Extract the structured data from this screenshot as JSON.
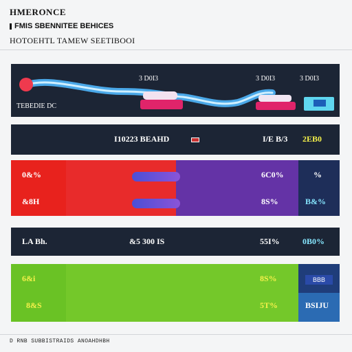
{
  "header": {
    "brand": "HMERONCE",
    "subtitle": "FMIS SBENNITEE BEHICES",
    "link": "HOTOEHTL TAMEW SEETIBOOI"
  },
  "track": {
    "label": "TEBEDIE DC",
    "markers": [
      "3 D0I3",
      "3 D0I3",
      "3 D0I3"
    ]
  },
  "summary_row": {
    "center": "I10223 BEAHD",
    "right_a": "I/E B/3",
    "right_b": "2EB0"
  },
  "red_rows": [
    {
      "left": "0&%",
      "mid_right": "6C0%",
      "far_right": "%"
    },
    {
      "left": "&8H",
      "mid_right": "8S%",
      "far_right": "B&%"
    }
  ],
  "dark_row": {
    "left": "LA Bh.",
    "center": "&5 300 IS",
    "right_a": "55I%",
    "right_b": "0B0%"
  },
  "green_rows": [
    {
      "left": "6&i",
      "mid_right": "8S%",
      "far_right": "BBB"
    },
    {
      "left": "8&S",
      "mid_right": "5T%",
      "far_right": "BSIJU"
    }
  ],
  "footer": "D RNB SUBBISTRAIDS ANOAHDHBH",
  "colors": {
    "navy": "#1c2535",
    "red": "#e8221d",
    "purple": "#6433a6",
    "green": "#6ac225",
    "yellow_text": "#f4f04a",
    "cyan_text": "#86e6ff"
  }
}
